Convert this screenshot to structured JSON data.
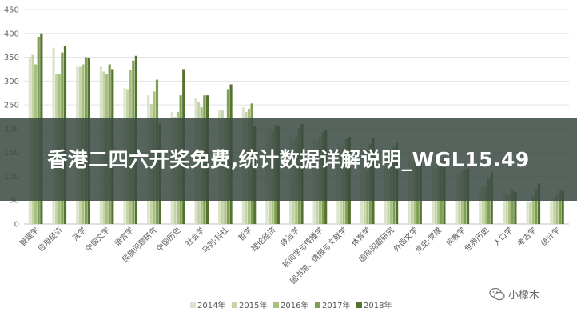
{
  "chart_data": {
    "type": "bar",
    "categories": [
      "管理学",
      "应用经济",
      "法学",
      "中国文学",
      "语言学",
      "民族问题研究",
      "中国历史",
      "社会学",
      "马列·科社",
      "哲学",
      "理论经济",
      "政治学",
      "新闻学与传播学",
      "图书馆、情报与文献学",
      "体育学",
      "国际问题研究",
      "外国文学",
      "党史·党建",
      "宗教学",
      "世界历史",
      "人口学",
      "考古学",
      "统计学"
    ],
    "series": [
      {
        "name": "2014年",
        "color": "#dbe3cc",
        "values": [
          350,
          370,
          330,
          330,
          285,
          270,
          235,
          265,
          240,
          245,
          200,
          185,
          178,
          168,
          160,
          152,
          140,
          125,
          108,
          80,
          65,
          48,
          48
        ]
      },
      {
        "name": "2015年",
        "color": "#c4d4a6",
        "values": [
          355,
          315,
          330,
          320,
          283,
          252,
          225,
          255,
          238,
          235,
          200,
          178,
          175,
          160,
          155,
          148,
          128,
          118,
          105,
          78,
          62,
          45,
          55
        ]
      },
      {
        "name": "2016年",
        "color": "#a8c07e",
        "values": [
          335,
          315,
          335,
          315,
          323,
          278,
          235,
          245,
          222,
          242,
          195,
          185,
          180,
          162,
          157,
          150,
          132,
          122,
          110,
          77,
          60,
          58,
          62
        ]
      },
      {
        "name": "2017年",
        "color": "#7f9e55",
        "values": [
          393,
          360,
          350,
          335,
          343,
          303,
          270,
          270,
          283,
          253,
          208,
          200,
          192,
          178,
          168,
          162,
          140,
          132,
          115,
          95,
          72,
          72,
          70
        ]
      },
      {
        "name": "2018年",
        "color": "#55722f",
        "values": [
          400,
          373,
          348,
          325,
          353,
          210,
          325,
          270,
          293,
          205,
          205,
          210,
          197,
          183,
          180,
          170,
          140,
          128,
          117,
          108,
          67,
          85,
          70
        ]
      }
    ],
    "ylim": [
      0,
      450
    ],
    "yticks": [
      0,
      50,
      100,
      150,
      200,
      250,
      300,
      350,
      400,
      450
    ],
    "grid": true,
    "legend_position": "bottom"
  },
  "banner": {
    "title": "香港二四六开奖免费,统计数据详解说明_WGL15.49"
  },
  "watermark": {
    "text": "小橡木",
    "icon": "wechat-icon"
  }
}
